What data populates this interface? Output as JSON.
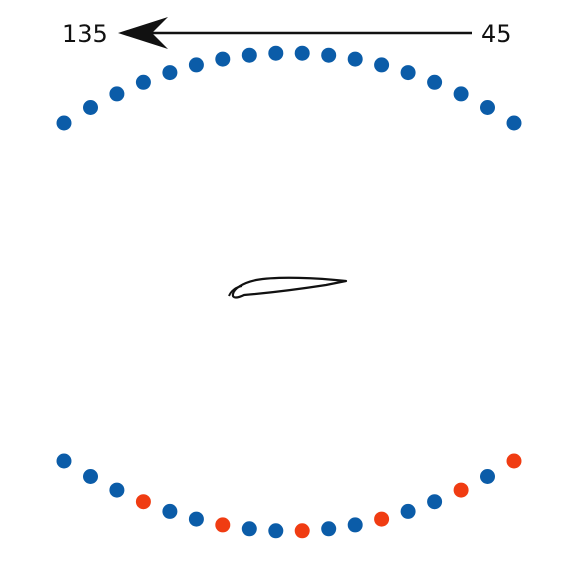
{
  "arrow": {
    "start_label": "45",
    "end_label": "135"
  },
  "colors": {
    "microphone": "#0b5ca8",
    "highlighted": "#f03c12",
    "ink": "#111111"
  },
  "arrays": {
    "top_count": 18,
    "bottom_count": 18,
    "bottom_highlighted_indices": [
      3,
      6,
      9,
      12,
      15,
      17
    ]
  },
  "icon": "airfoil-profile"
}
